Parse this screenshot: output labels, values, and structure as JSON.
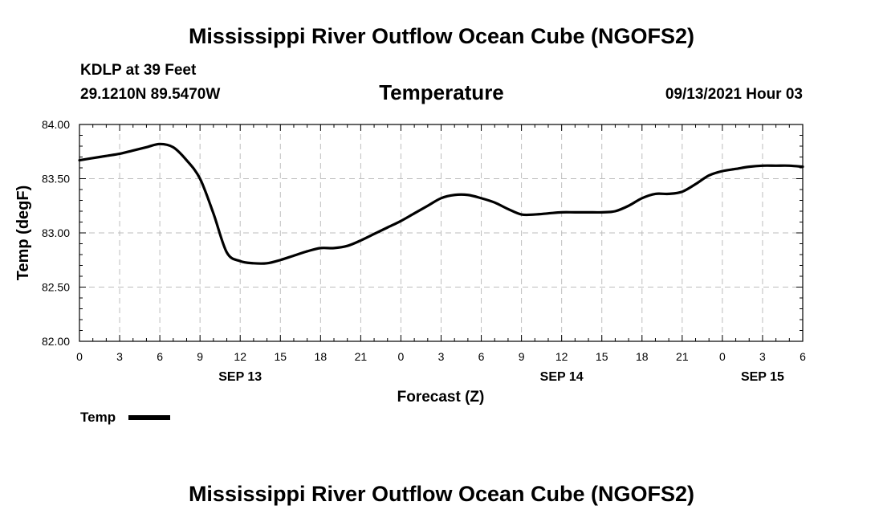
{
  "page": {
    "title": "Mississippi River Outflow Ocean Cube (NGOFS2)",
    "footer_title": "Mississippi River Outflow Ocean Cube (NGOFS2)",
    "station": "KDLP at 39 Feet",
    "coords": "29.1210N  89.5470W",
    "variable": "Temperature",
    "datetime": "09/13/2021 Hour 03"
  },
  "chart_data": {
    "type": "line",
    "title": "Temperature",
    "xlabel": "Forecast (Z)",
    "ylabel": "Temp (degF)",
    "xlim": [
      0,
      54
    ],
    "ylim": [
      82.0,
      84.0
    ],
    "x_ticks": [
      0,
      3,
      6,
      9,
      12,
      15,
      18,
      21,
      24,
      27,
      30,
      33,
      36,
      39,
      42,
      45,
      48,
      51,
      54
    ],
    "x_tick_labels": [
      "0",
      "3",
      "6",
      "9",
      "12",
      "15",
      "18",
      "21",
      "0",
      "3",
      "6",
      "9",
      "12",
      "15",
      "18",
      "21",
      "0",
      "3",
      "6"
    ],
    "y_ticks": [
      82.0,
      82.5,
      83.0,
      83.5,
      84.0
    ],
    "y_tick_labels": [
      "82.00",
      "82.50",
      "83.00",
      "83.50",
      "84.00"
    ],
    "date_labels": [
      {
        "x": 12,
        "label": "SEP 13"
      },
      {
        "x": 36,
        "label": "SEP 14"
      },
      {
        "x": 51,
        "label": "SEP 15"
      }
    ],
    "grid": true,
    "legend_position": "bottom-left",
    "line_color": "#000000",
    "series": [
      {
        "name": "Temp",
        "x": [
          0,
          1,
          2,
          3,
          4,
          5,
          6,
          7,
          8,
          9,
          10,
          11,
          12,
          13,
          14,
          15,
          16,
          17,
          18,
          19,
          20,
          21,
          22,
          23,
          24,
          25,
          26,
          27,
          28,
          29,
          30,
          31,
          32,
          33,
          34,
          35,
          36,
          37,
          38,
          39,
          40,
          41,
          42,
          43,
          44,
          45,
          46,
          47,
          48,
          49,
          50,
          51,
          52,
          53,
          54
        ],
        "values": [
          83.67,
          83.69,
          83.71,
          83.73,
          83.76,
          83.79,
          83.82,
          83.79,
          83.67,
          83.5,
          83.18,
          82.82,
          82.74,
          82.72,
          82.72,
          82.75,
          82.79,
          82.83,
          82.86,
          82.86,
          82.88,
          82.93,
          82.99,
          83.05,
          83.11,
          83.18,
          83.25,
          83.32,
          83.35,
          83.35,
          83.32,
          83.28,
          83.22,
          83.17,
          83.17,
          83.18,
          83.19,
          83.19,
          83.19,
          83.19,
          83.2,
          83.25,
          83.32,
          83.36,
          83.36,
          83.38,
          83.45,
          83.53,
          83.57,
          83.59,
          83.61,
          83.62,
          83.62,
          83.62,
          83.61
        ]
      }
    ]
  }
}
